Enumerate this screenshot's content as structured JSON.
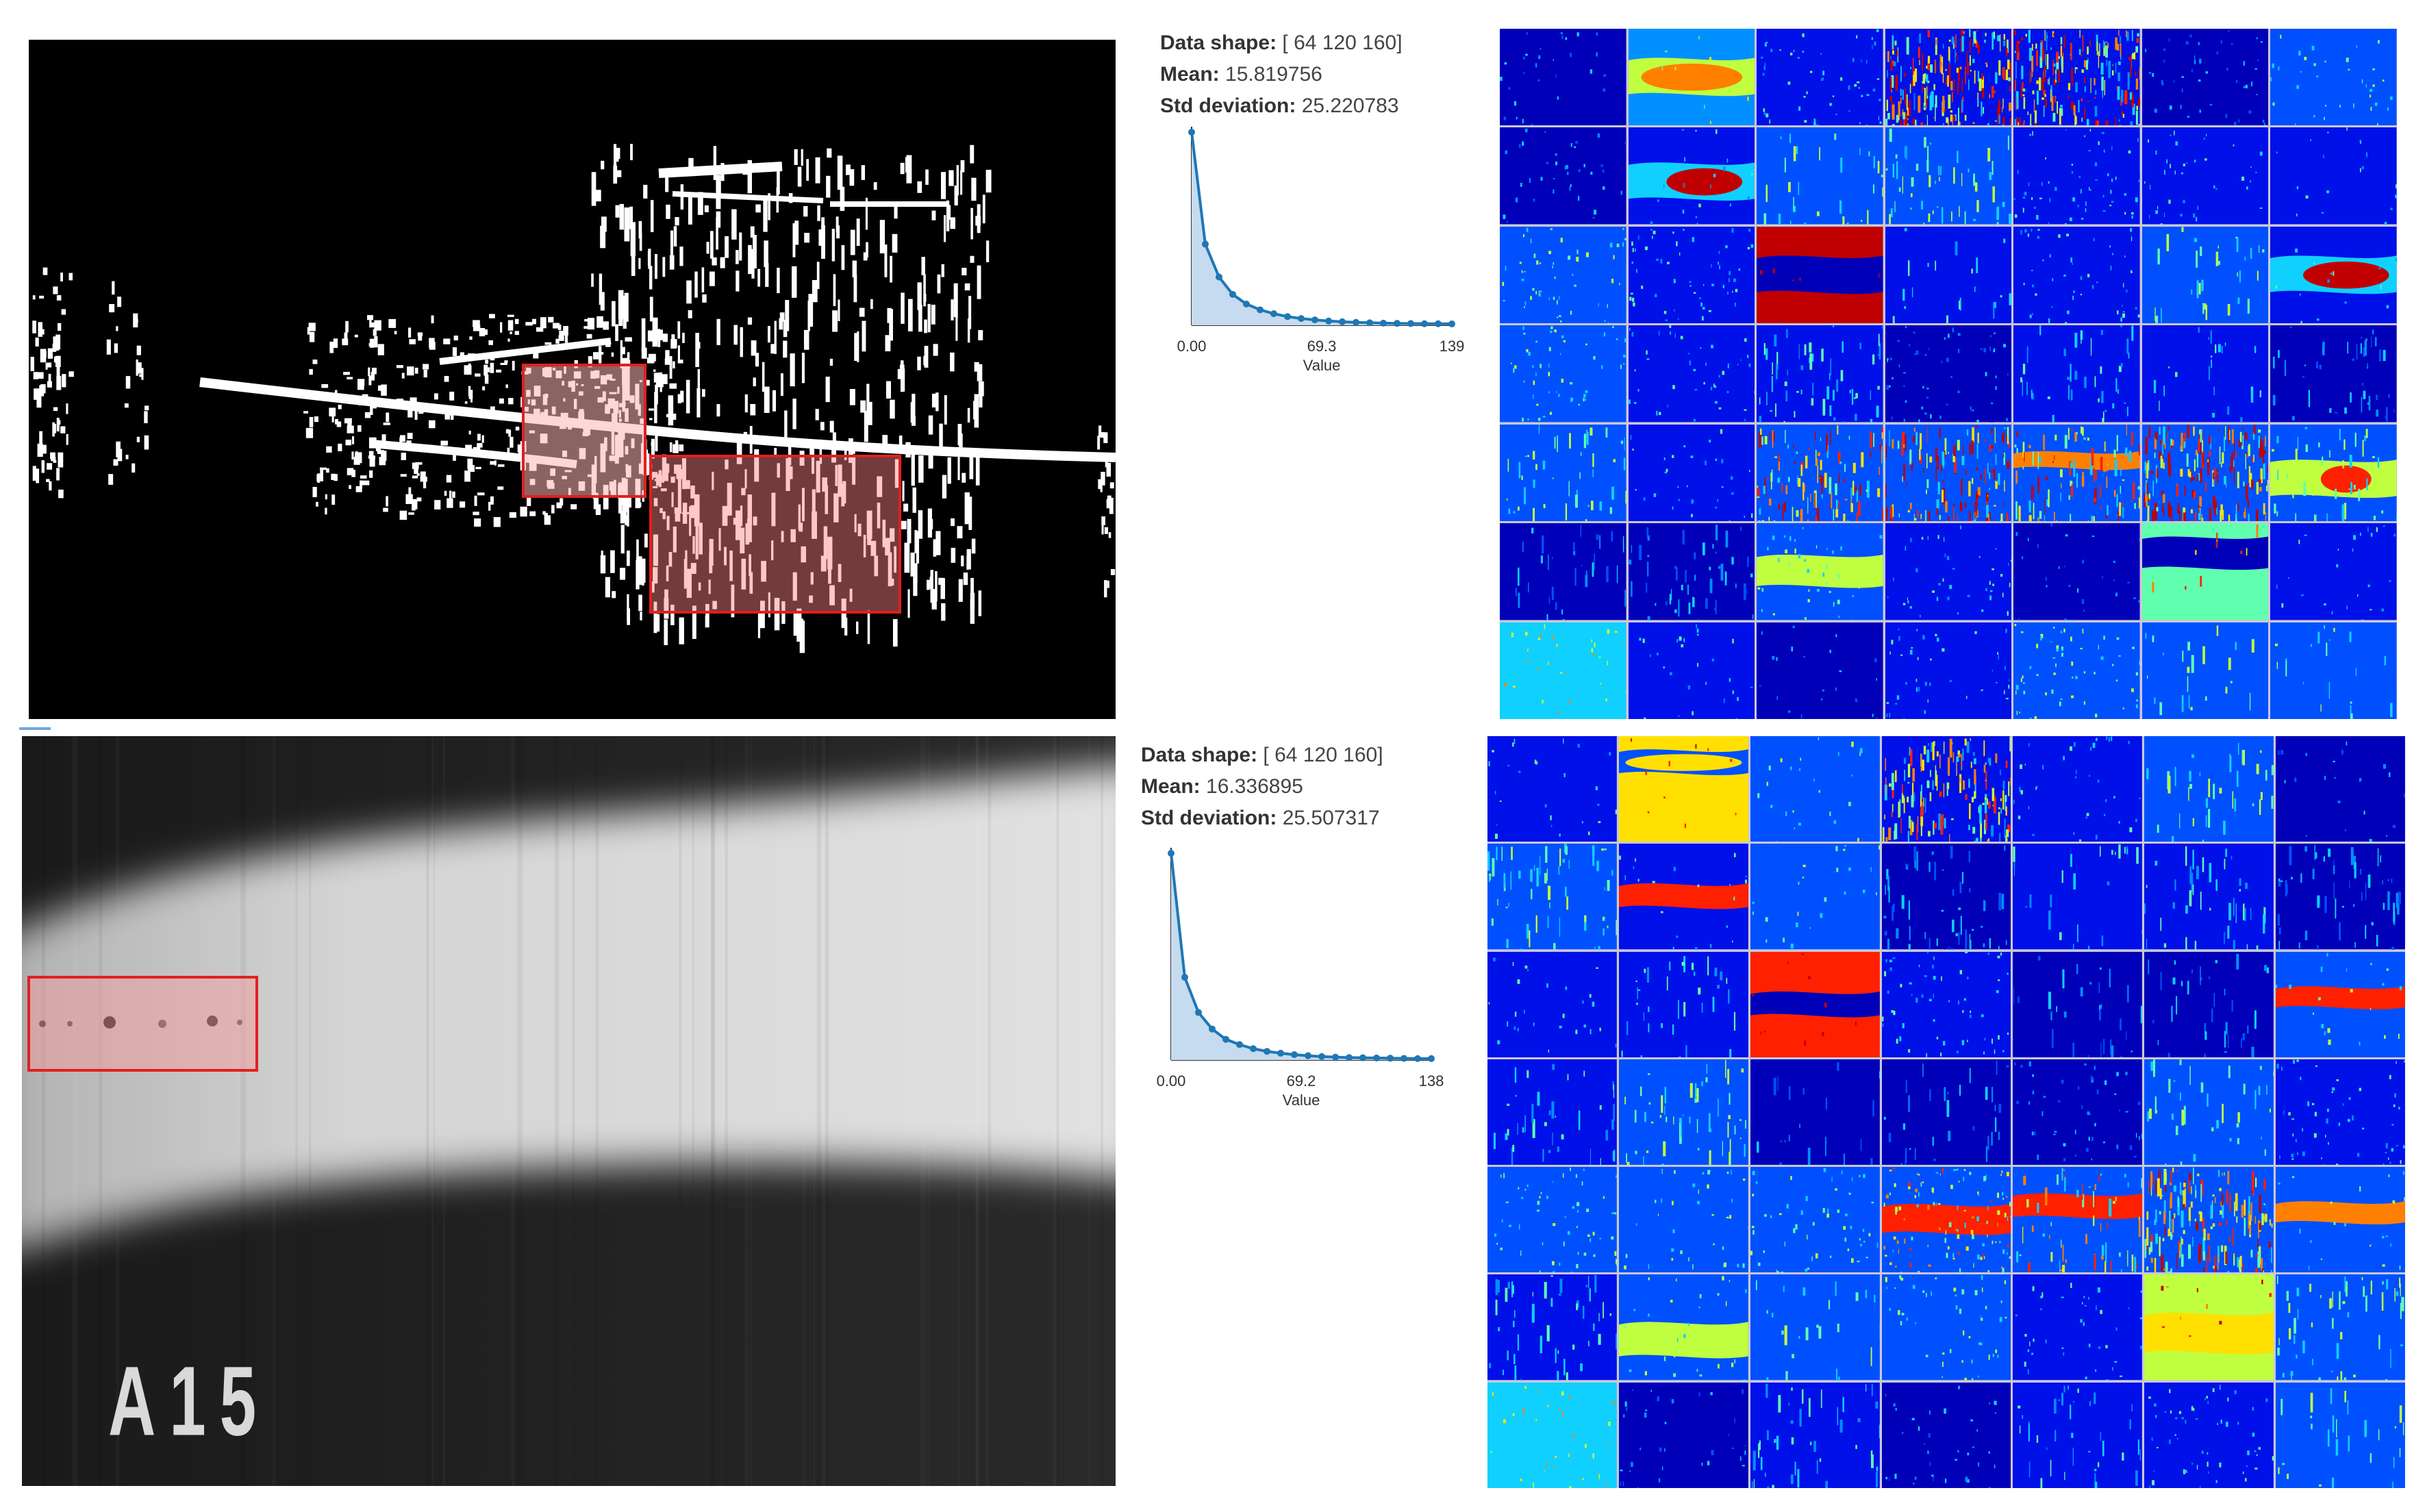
{
  "top": {
    "stats": {
      "shape_label": "Data shape:",
      "shape_value": "[ 64 120 160]",
      "mean_label": "Mean:",
      "mean_value": "15.819756",
      "std_label": "Std deviation:",
      "std_value": "25.220783"
    },
    "histogram": {
      "x_ticks": [
        "0.00",
        "69.3",
        "139"
      ],
      "x_label": "Value",
      "x_range": [
        0,
        139
      ],
      "values": [
        1.0,
        0.42,
        0.25,
        0.16,
        0.11,
        0.08,
        0.06,
        0.045,
        0.035,
        0.028,
        0.022,
        0.018,
        0.015,
        0.013,
        0.011,
        0.01,
        0.009,
        0.008,
        0.008,
        0.007
      ]
    }
  },
  "bottom": {
    "stats": {
      "shape_label": "Data shape:",
      "shape_value": "[ 64 120 160]",
      "mean_label": "Mean:",
      "mean_value": "16.336895",
      "std_label": "Std deviation:",
      "std_value": "25.507317"
    },
    "histogram": {
      "x_ticks": [
        "0.00",
        "69.2",
        "138"
      ],
      "x_label": "Value",
      "x_range": [
        0,
        138
      ],
      "values": [
        1.0,
        0.4,
        0.23,
        0.15,
        0.1,
        0.075,
        0.055,
        0.042,
        0.033,
        0.026,
        0.021,
        0.017,
        0.014,
        0.012,
        0.011,
        0.01,
        0.009,
        0.008,
        0.007,
        0.007
      ]
    },
    "image_label": "A15"
  },
  "colors": {
    "highlight_box": "#e02020",
    "histogram_line": "#1f77b4",
    "histogram_fill": "#c6dbef"
  }
}
